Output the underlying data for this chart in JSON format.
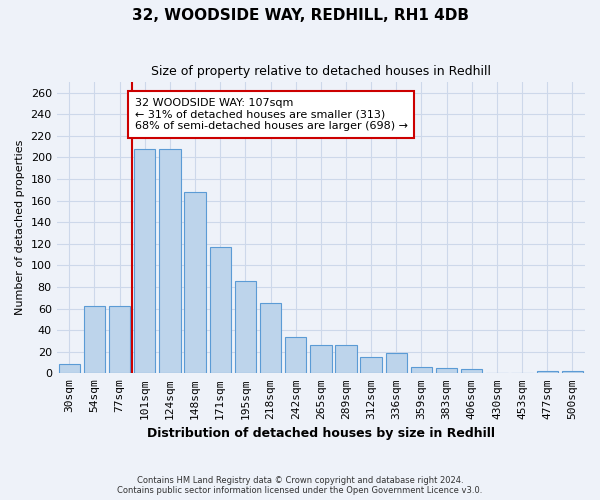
{
  "title": "32, WOODSIDE WAY, REDHILL, RH1 4DB",
  "subtitle": "Size of property relative to detached houses in Redhill",
  "xlabel": "Distribution of detached houses by size in Redhill",
  "ylabel": "Number of detached properties",
  "bar_labels": [
    "30sqm",
    "54sqm",
    "77sqm",
    "101sqm",
    "124sqm",
    "148sqm",
    "171sqm",
    "195sqm",
    "218sqm",
    "242sqm",
    "265sqm",
    "289sqm",
    "312sqm",
    "336sqm",
    "359sqm",
    "383sqm",
    "406sqm",
    "430sqm",
    "453sqm",
    "477sqm",
    "500sqm"
  ],
  "bar_values": [
    9,
    62,
    62,
    208,
    208,
    168,
    117,
    86,
    65,
    34,
    26,
    26,
    15,
    19,
    6,
    5,
    4,
    0,
    0,
    2,
    2
  ],
  "bar_color": "#bdd4eb",
  "bar_edgecolor": "#5b9bd5",
  "vline_x_index": 3,
  "vline_color": "#cc0000",
  "annotation_text": "32 WOODSIDE WAY: 107sqm\n← 31% of detached houses are smaller (313)\n68% of semi-detached houses are larger (698) →",
  "annotation_box_edgecolor": "#cc0000",
  "annotation_box_facecolor": "#ffffff",
  "footer_line1": "Contains HM Land Registry data © Crown copyright and database right 2024.",
  "footer_line2": "Contains public sector information licensed under the Open Government Licence v3.0.",
  "ylim_max": 270,
  "yticks": [
    0,
    20,
    40,
    60,
    80,
    100,
    120,
    140,
    160,
    180,
    200,
    220,
    240,
    260
  ],
  "grid_color": "#cdd8ea",
  "background_color": "#eef2f9"
}
